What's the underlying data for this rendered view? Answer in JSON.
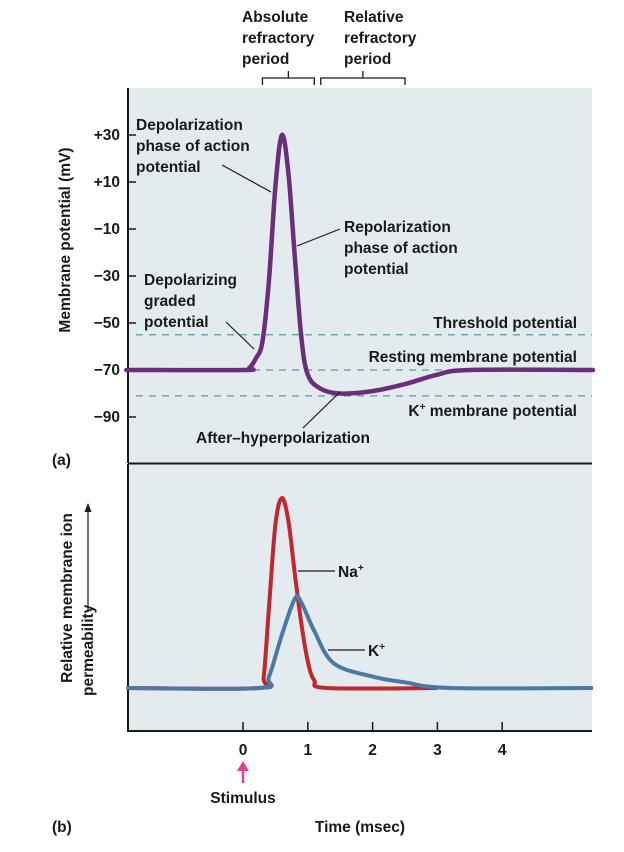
{
  "chart_data": [
    {
      "panel_label": "(a)",
      "type": "line",
      "ylabel": "Membrane potential (mV)",
      "xlim": [
        -1.8,
        5.4
      ],
      "ylim": [
        -110,
        50
      ],
      "y_ticks": [
        "+30",
        "+10",
        "−10",
        "−30",
        "−50",
        "−70",
        "−90"
      ],
      "y_tick_values": [
        30,
        10,
        -10,
        -30,
        -50,
        -70,
        -90
      ],
      "series": [
        {
          "color": "#6b2d7c",
          "x": [
            -1.8,
            0,
            0.1,
            0.2,
            0.3,
            0.4,
            0.5,
            0.6,
            0.7,
            0.8,
            0.9,
            1.0,
            1.2,
            1.5,
            2.0,
            2.5,
            3.0,
            3.5,
            5.4
          ],
          "y": [
            -70,
            -70,
            -69,
            -65,
            -58,
            -32,
            8,
            30,
            14,
            -22,
            -56,
            -72,
            -78,
            -80,
            -79,
            -76,
            -72,
            -70,
            -70
          ]
        }
      ],
      "reference_lines": [
        {
          "label": "Threshold potential",
          "value": -55
        },
        {
          "label": "Resting membrane potential",
          "value": -70
        },
        {
          "label_main": "K",
          "label_sup": "+",
          "label_rest": " membrane potential",
          "value": -81
        }
      ],
      "annotations": {
        "depolarization": [
          "Depolarization",
          "phase of action",
          "potential"
        ],
        "repolarization": [
          "Repolarization",
          "phase of action",
          "potential"
        ],
        "graded": [
          "Depolarizing",
          "graded",
          "potential"
        ],
        "after_hyper": "After–hyperpolarization"
      },
      "periods": [
        {
          "lines": [
            "Absolute",
            "refractory",
            "period"
          ],
          "range": [
            0.3,
            1.1
          ]
        },
        {
          "lines": [
            "Relative",
            "refractory",
            "period"
          ],
          "range": [
            1.2,
            2.5
          ]
        }
      ],
      "background": "#e3ebef",
      "dash_color": "#5b9aa2"
    },
    {
      "panel_label": "(b)",
      "type": "line",
      "ylabel": [
        "Relative membrane ion",
        "permeability"
      ],
      "xlabel": "Time (msec)",
      "xlim": [
        -1.8,
        5.4
      ],
      "ylim": [
        -0.23,
        1.2
      ],
      "x_ticks": [
        "0",
        "1",
        "2",
        "3",
        "4"
      ],
      "x_tick_values": [
        0,
        1,
        2,
        3,
        4
      ],
      "series": [
        {
          "name": "Na",
          "name_sup": "+",
          "color": "#c1272d",
          "x": [
            -1.8,
            0.25,
            0.32,
            0.4,
            0.5,
            0.6,
            0.7,
            0.8,
            0.9,
            1.0,
            1.1,
            1.3,
            3.0
          ],
          "y": [
            0,
            0,
            0.06,
            0.42,
            0.86,
            1.0,
            0.88,
            0.6,
            0.34,
            0.14,
            0.04,
            0,
            0
          ]
        },
        {
          "name": "K",
          "name_sup": "+",
          "color": "#4a78a8",
          "x": [
            -1.8,
            0.25,
            0.4,
            0.6,
            0.8,
            0.9,
            1.1,
            1.4,
            2.0,
            2.5,
            3.2,
            5.4
          ],
          "y": [
            0,
            0,
            0.06,
            0.28,
            0.47,
            0.45,
            0.3,
            0.13,
            0.06,
            0.03,
            0,
            0
          ]
        }
      ],
      "stimulus": {
        "label": "Stimulus",
        "at": 0,
        "color": "#e0408a"
      }
    }
  ]
}
